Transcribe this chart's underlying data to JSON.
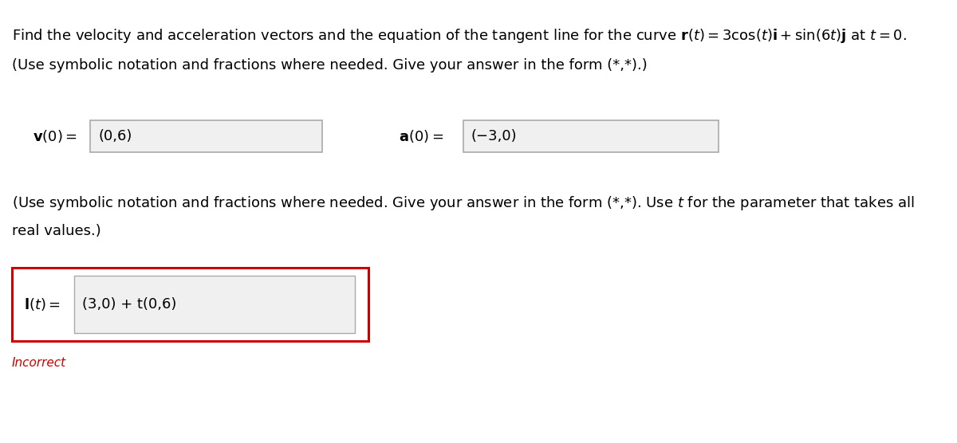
{
  "background_color": "#ffffff",
  "text_color": "#000000",
  "v_value": "(0,6)",
  "a_value": "(−3,0)",
  "l_value": "(3,0) + t(0,6)",
  "incorrect_text": "Incorrect",
  "incorrect_color": "#cc0000",
  "box_fill_color": "#f0f0f0",
  "box_edge_color": "#aaaaaa",
  "incorrect_box_edge_color": "#cc0000",
  "font_size_body": 13,
  "font_size_small": 11
}
